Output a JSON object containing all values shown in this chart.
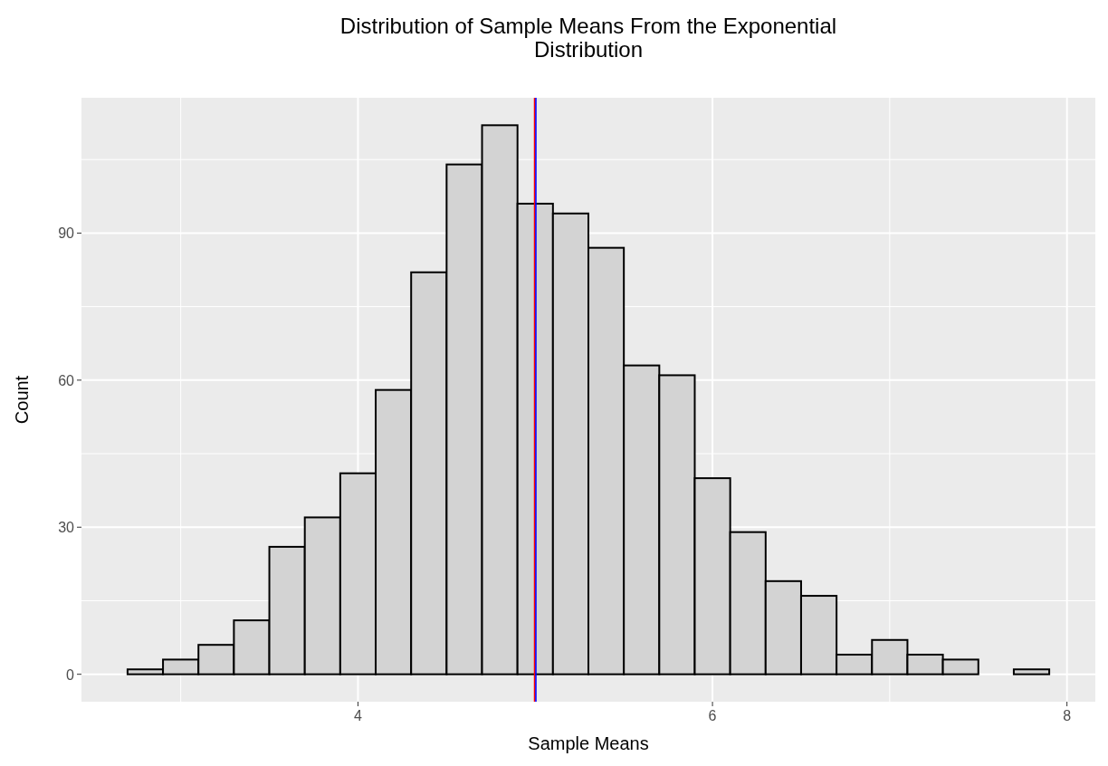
{
  "chart_data": {
    "type": "histogram",
    "title": "Distribution of Sample Means From the Exponential\nDistribution",
    "xlabel": "Sample Means",
    "ylabel": "Count",
    "bins": [
      2.7,
      2.9,
      3.1,
      3.3,
      3.5,
      3.7,
      3.9,
      4.1,
      4.3,
      4.5,
      4.7,
      4.9,
      5.1,
      5.3,
      5.5,
      5.7,
      5.9,
      6.1,
      6.3,
      6.5,
      6.7,
      6.9,
      7.1,
      7.3,
      7.5,
      7.7,
      7.9
    ],
    "values": [
      1,
      3,
      6,
      11,
      26,
      32,
      41,
      58,
      82,
      104,
      112,
      96,
      94,
      87,
      63,
      61,
      40,
      29,
      19,
      16,
      4,
      7,
      4,
      3,
      0,
      1
    ],
    "color": "#d3d3d3",
    "xlim": [
      2.44,
      8.16
    ],
    "ylim": [
      -5.6,
      117.6
    ],
    "xticks": [
      4,
      6,
      8
    ],
    "yticks": [
      0,
      30,
      60,
      90
    ],
    "ref_lines": [
      {
        "axis": "x",
        "value": 5.0,
        "color": "#ff0000"
      },
      {
        "axis": "x",
        "value": 5.0,
        "color": "#0000ff"
      }
    ],
    "grid": true
  }
}
